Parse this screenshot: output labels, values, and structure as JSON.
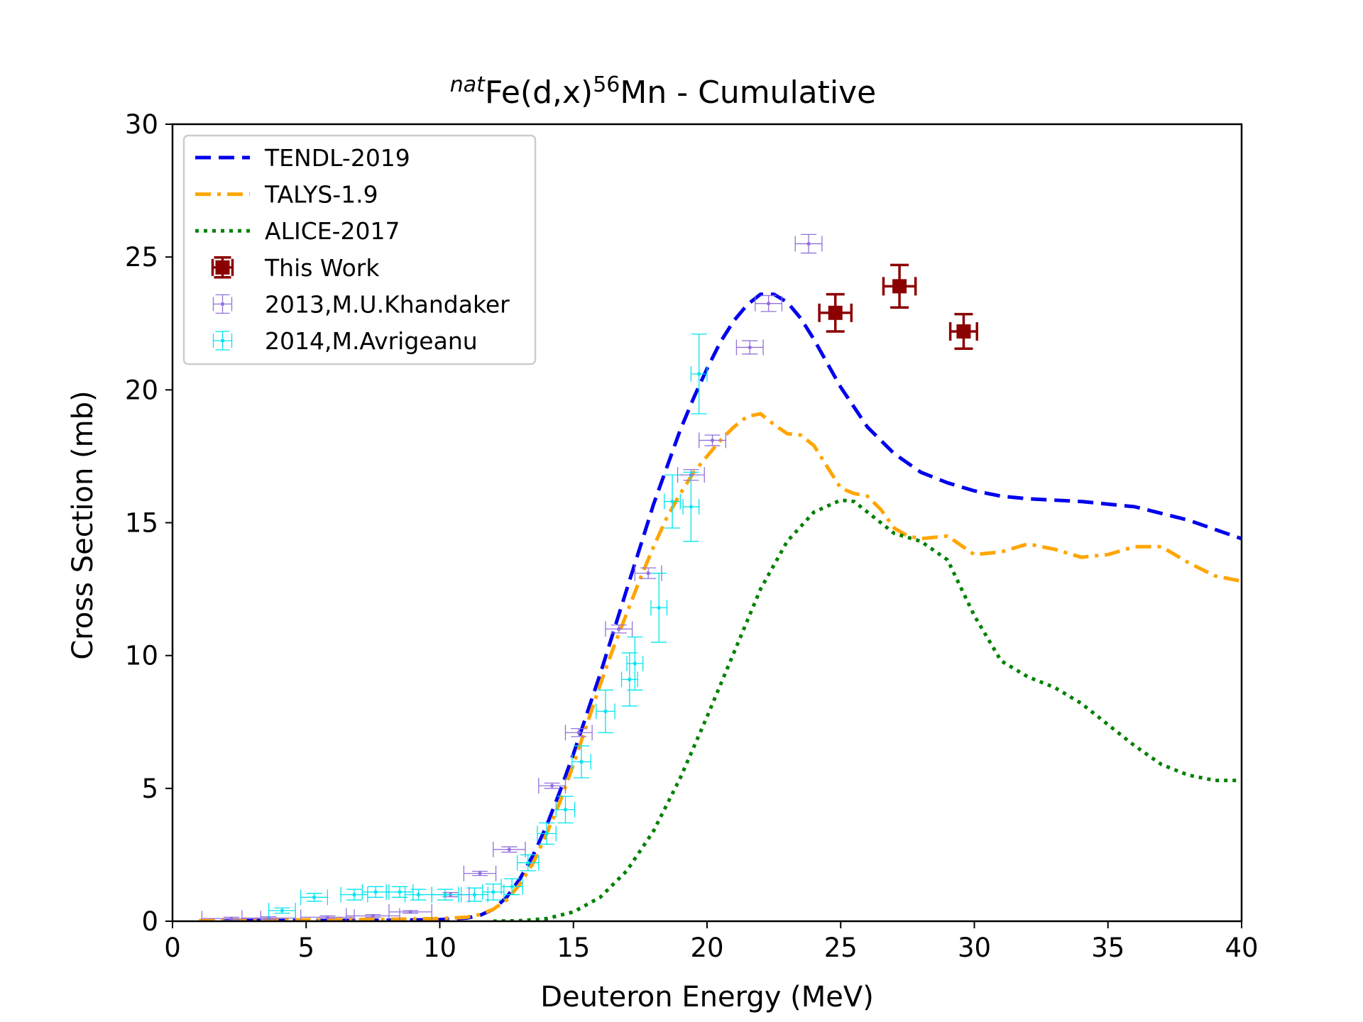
{
  "chart_data": {
    "type": "line",
    "title": {
      "sup1": "nat",
      "part1": "Fe(d,x)",
      "sup2": "56",
      "part2": "Mn - Cumulative"
    },
    "xlabel": "Deuteron Energy (MeV)",
    "ylabel": "Cross Section (mb)",
    "xlim": [
      0,
      40
    ],
    "ylim": [
      0,
      30
    ],
    "xticks": [
      0,
      5,
      10,
      15,
      20,
      25,
      30,
      35,
      40
    ],
    "yticks": [
      0,
      5,
      10,
      15,
      20,
      25,
      30
    ],
    "xtick_labels": [
      "0",
      "5",
      "10",
      "15",
      "20",
      "25",
      "30",
      "35",
      "40"
    ],
    "ytick_labels": [
      "0",
      "5",
      "10",
      "15",
      "20",
      "25",
      "30"
    ],
    "grid": false,
    "legend_position": "top-left",
    "series": [
      {
        "name": "TENDL-2019",
        "kind": "line",
        "style": "dashed",
        "color": "#0000ee",
        "x": [
          1,
          5,
          8,
          10,
          11,
          11.5,
          12,
          12.5,
          13,
          13.5,
          14,
          14.5,
          15,
          15.5,
          16,
          16.5,
          17,
          17.5,
          18,
          18.5,
          19,
          19.5,
          20,
          20.5,
          21,
          21.5,
          22,
          22.5,
          23,
          23.5,
          24,
          24.5,
          25,
          26,
          27,
          28,
          29,
          30,
          31,
          32,
          34,
          36,
          38,
          40
        ],
        "y": [
          0.02,
          0.03,
          0.04,
          0.06,
          0.12,
          0.22,
          0.45,
          0.9,
          1.6,
          2.5,
          3.6,
          4.9,
          6.3,
          7.8,
          9.3,
          10.9,
          12.5,
          14.1,
          15.7,
          17.1,
          18.5,
          19.7,
          20.8,
          21.8,
          22.6,
          23.2,
          23.6,
          23.6,
          23.3,
          22.7,
          21.9,
          21.0,
          20.1,
          18.6,
          17.6,
          16.9,
          16.5,
          16.2,
          16.0,
          15.9,
          15.8,
          15.6,
          15.1,
          14.4
        ]
      },
      {
        "name": "TALYS-1.9",
        "kind": "line",
        "style": "dashdot",
        "color": "#ffa500",
        "x": [
          1,
          5,
          8,
          10,
          11,
          11.5,
          12,
          12.5,
          13,
          13.5,
          14,
          14.5,
          15,
          15.5,
          16,
          16.5,
          17,
          17.5,
          18,
          18.5,
          19,
          19.5,
          20,
          20.5,
          21,
          21.5,
          22,
          22.5,
          23,
          23.5,
          24,
          24.5,
          25,
          25.5,
          26,
          26.5,
          27,
          27.5,
          28,
          29,
          30,
          31,
          32,
          33,
          34,
          35,
          36,
          37,
          38,
          39,
          40
        ],
        "y": [
          0.03,
          0.05,
          0.07,
          0.1,
          0.15,
          0.25,
          0.45,
          0.8,
          1.4,
          2.2,
          3.3,
          4.5,
          5.9,
          7.4,
          8.9,
          10.3,
          11.6,
          12.9,
          14.1,
          15.2,
          16.1,
          16.9,
          17.5,
          18.1,
          18.6,
          19.0,
          19.1,
          18.7,
          18.35,
          18.3,
          17.9,
          17.1,
          16.3,
          16.1,
          16.0,
          15.5,
          14.8,
          14.5,
          14.4,
          14.5,
          13.8,
          13.9,
          14.2,
          14.0,
          13.7,
          13.8,
          14.1,
          14.1,
          13.5,
          13.0,
          12.8
        ]
      },
      {
        "name": "ALICE-2017",
        "kind": "line",
        "style": "dotted",
        "color": "#008000",
        "x": [
          12,
          13,
          14,
          15,
          16,
          17,
          18,
          19,
          20,
          21,
          22,
          23,
          24,
          25,
          25.5,
          26,
          27,
          28,
          29,
          30,
          31,
          32,
          33,
          34,
          35,
          36,
          37,
          38,
          39,
          40
        ],
        "y": [
          0.0,
          0.02,
          0.1,
          0.35,
          0.9,
          1.9,
          3.4,
          5.4,
          7.7,
          10.1,
          12.5,
          14.3,
          15.4,
          15.85,
          15.8,
          15.4,
          14.6,
          14.3,
          13.6,
          11.5,
          9.8,
          9.2,
          8.8,
          8.2,
          7.4,
          6.6,
          5.9,
          5.5,
          5.3,
          5.3
        ]
      },
      {
        "name": "This Work",
        "kind": "errorbar",
        "color": "#8b0000",
        "x": [
          24.8,
          27.2,
          29.6
        ],
        "y": [
          22.9,
          23.9,
          22.2
        ],
        "xerr": [
          0.6,
          0.6,
          0.5
        ],
        "yerr": [
          0.7,
          0.8,
          0.65
        ]
      },
      {
        "name": "2013,M.U.Khandaker",
        "kind": "errorbar",
        "color": "#9370db",
        "x": [
          2.2,
          3.6,
          5.8,
          7.5,
          8.9,
          10.4,
          11.5,
          12.6,
          14.2,
          15.2,
          16.7,
          17.8,
          19.4,
          20.2,
          21.6,
          22.3,
          23.8
        ],
        "y": [
          0.1,
          0.12,
          0.15,
          0.2,
          0.35,
          1.0,
          1.8,
          2.7,
          5.1,
          7.1,
          11.0,
          13.1,
          16.8,
          18.1,
          21.6,
          23.25,
          25.5
        ],
        "xerr": [
          1.1,
          1.0,
          1.0,
          1.0,
          0.8,
          0.7,
          0.6,
          0.6,
          0.5,
          0.5,
          0.5,
          0.5,
          0.5,
          0.5,
          0.5,
          0.5,
          0.5
        ],
        "yerr": [
          0.05,
          0.05,
          0.05,
          0.05,
          0.05,
          0.08,
          0.08,
          0.1,
          0.1,
          0.15,
          0.15,
          0.2,
          0.2,
          0.2,
          0.25,
          0.3,
          0.35
        ]
      },
      {
        "name": "2014,M.Avrigeanu",
        "kind": "errorbar",
        "color": "#00e5ee",
        "x": [
          4.1,
          5.3,
          6.8,
          7.6,
          8.5,
          9.2,
          10.2,
          11.3,
          12.0,
          12.7,
          13.3,
          14.0,
          14.7,
          15.3,
          16.2,
          17.1,
          17.3,
          18.2,
          18.7,
          19.4,
          19.7
        ],
        "y": [
          0.4,
          0.9,
          1.0,
          1.1,
          1.1,
          1.0,
          1.0,
          1.0,
          1.1,
          1.3,
          2.2,
          3.3,
          4.2,
          6.0,
          7.9,
          9.1,
          9.7,
          11.8,
          15.8,
          15.6,
          20.6
        ],
        "xerr": [
          0.5,
          0.5,
          0.5,
          0.5,
          0.5,
          0.5,
          0.5,
          0.5,
          0.4,
          0.4,
          0.4,
          0.35,
          0.35,
          0.35,
          0.35,
          0.3,
          0.3,
          0.3,
          0.3,
          0.3,
          0.3
        ],
        "yerr": [
          0.1,
          0.15,
          0.2,
          0.2,
          0.2,
          0.2,
          0.2,
          0.25,
          0.3,
          0.3,
          0.3,
          0.4,
          0.5,
          0.6,
          0.8,
          1.0,
          1.0,
          1.3,
          1.0,
          1.3,
          1.5
        ]
      }
    ]
  }
}
